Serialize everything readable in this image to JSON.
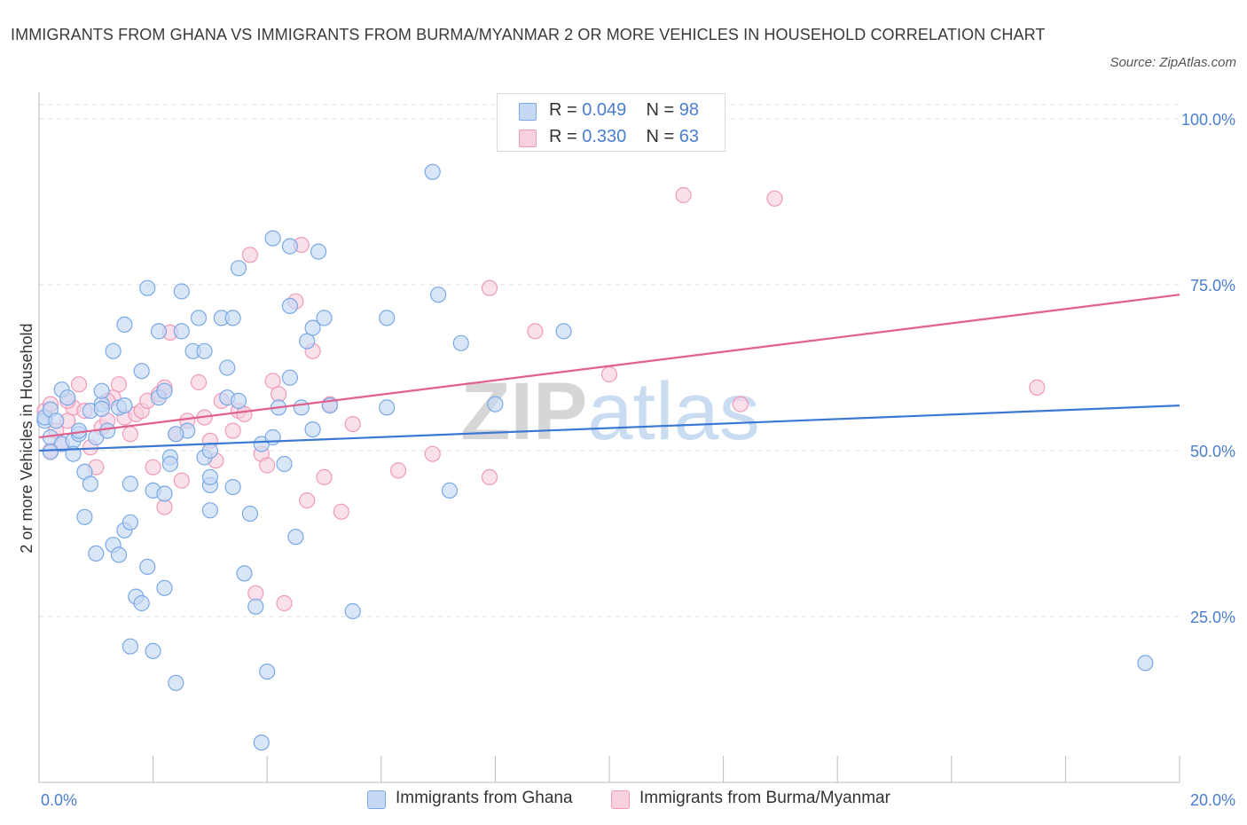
{
  "title": "IMMIGRANTS FROM GHANA VS IMMIGRANTS FROM BURMA/MYANMAR 2 OR MORE VEHICLES IN HOUSEHOLD CORRELATION CHART",
  "source": "Source: ZipAtlas.com",
  "legend": {
    "rows": [
      {
        "r_label": "R =",
        "r_value": "0.049",
        "n_label": "N =",
        "n_value": "98",
        "color": "#7aa9e6"
      },
      {
        "r_label": "R =",
        "r_value": "0.330",
        "n_label": "N =",
        "n_value": "63",
        "color": "#ef9ab8"
      }
    ]
  },
  "bottom_legend": [
    "Immigrants from Ghana",
    "Immigrants from Burma/Myanmar"
  ],
  "colors": {
    "blue_fill": "#c5d9f5",
    "blue_stroke": "#7aa9e6",
    "blue_line": "#3a78d4",
    "pink_fill": "#f8d0de",
    "pink_stroke": "#ef9ab8",
    "pink_line": "#e0608c",
    "axis_text": "#4a7ecf",
    "grid": "#dcdcdc"
  },
  "chart_data": {
    "type": "scatter",
    "xlabel": "",
    "ylabel": "2 or more Vehicles in Household",
    "xlim": [
      0,
      20
    ],
    "ylim": [
      0,
      100
    ],
    "x_tick_labels": [
      "0.0%",
      "20.0%"
    ],
    "y_tick_labels": [
      "25.0%",
      "50.0%",
      "75.0%",
      "100.0%"
    ],
    "y_ticks": [
      25,
      50,
      75,
      100
    ],
    "grid": true,
    "legend_position": "top-center",
    "watermark": "ZIPatlas",
    "series": [
      {
        "name": "Immigrants from Ghana",
        "trend": {
          "x": [
            0,
            20
          ],
          "y": [
            50.0,
            56.8
          ]
        },
        "points": [
          [
            0.1,
            54.5
          ],
          [
            0.1,
            55.0
          ],
          [
            0.2,
            52.0
          ],
          [
            0.2,
            56.2
          ],
          [
            0.3,
            54.5
          ],
          [
            0.4,
            59.2
          ],
          [
            0.4,
            51.0
          ],
          [
            0.5,
            58.0
          ],
          [
            0.6,
            51.5
          ],
          [
            0.7,
            52.5
          ],
          [
            0.7,
            53.0
          ],
          [
            0.8,
            46.8
          ],
          [
            0.8,
            40.0
          ],
          [
            0.9,
            56.0
          ],
          [
            0.9,
            45.0
          ],
          [
            1.0,
            34.5
          ],
          [
            1.0,
            52.0
          ],
          [
            1.1,
            57.0
          ],
          [
            1.1,
            56.3
          ],
          [
            1.2,
            53.0
          ],
          [
            1.3,
            65.0
          ],
          [
            1.3,
            35.8
          ],
          [
            1.4,
            56.5
          ],
          [
            1.4,
            34.3
          ],
          [
            1.5,
            56.8
          ],
          [
            1.5,
            38.0
          ],
          [
            1.6,
            20.5
          ],
          [
            1.6,
            39.2
          ],
          [
            1.6,
            45.0
          ],
          [
            1.7,
            28.0
          ],
          [
            1.8,
            27.0
          ],
          [
            1.8,
            62.0
          ],
          [
            1.9,
            74.5
          ],
          [
            1.9,
            32.5
          ],
          [
            2.0,
            44.0
          ],
          [
            2.0,
            19.8
          ],
          [
            2.1,
            68.0
          ],
          [
            2.1,
            58.0
          ],
          [
            2.2,
            59.0
          ],
          [
            2.2,
            29.3
          ],
          [
            2.2,
            43.5
          ],
          [
            2.3,
            49.0
          ],
          [
            2.3,
            48.0
          ],
          [
            2.4,
            15.0
          ],
          [
            2.5,
            74.0
          ],
          [
            2.5,
            68.0
          ],
          [
            2.6,
            53.0
          ],
          [
            2.7,
            65.0
          ],
          [
            2.8,
            70.0
          ],
          [
            2.9,
            65.0
          ],
          [
            2.9,
            49.0
          ],
          [
            3.0,
            50.0
          ],
          [
            3.0,
            44.8
          ],
          [
            3.0,
            41.0
          ],
          [
            3.2,
            70.0
          ],
          [
            3.3,
            62.5
          ],
          [
            3.3,
            58.0
          ],
          [
            3.4,
            70.0
          ],
          [
            3.4,
            44.5
          ],
          [
            3.5,
            77.5
          ],
          [
            3.5,
            57.5
          ],
          [
            3.6,
            31.5
          ],
          [
            3.7,
            40.5
          ],
          [
            3.8,
            26.5
          ],
          [
            3.9,
            51.0
          ],
          [
            3.9,
            6.0
          ],
          [
            4.0,
            16.7
          ],
          [
            4.1,
            82.0
          ],
          [
            4.1,
            52.0
          ],
          [
            4.2,
            56.5
          ],
          [
            4.4,
            71.8
          ],
          [
            4.4,
            61.0
          ],
          [
            4.4,
            80.8
          ],
          [
            4.5,
            37.0
          ],
          [
            4.6,
            56.5
          ],
          [
            4.7,
            66.5
          ],
          [
            4.8,
            68.5
          ],
          [
            4.8,
            53.2
          ],
          [
            4.9,
            80.0
          ],
          [
            5.0,
            70.0
          ],
          [
            5.1,
            56.8
          ],
          [
            5.5,
            25.8
          ],
          [
            6.1,
            70.0
          ],
          [
            6.1,
            56.5
          ],
          [
            6.9,
            92.0
          ],
          [
            7.0,
            73.5
          ],
          [
            7.2,
            44.0
          ],
          [
            7.4,
            66.2
          ],
          [
            8.0,
            57.0
          ],
          [
            9.2,
            68.0
          ],
          [
            19.4,
            18.0
          ],
          [
            1.5,
            69.0
          ],
          [
            0.6,
            49.5
          ],
          [
            1.1,
            59.0
          ],
          [
            3.0,
            46.0
          ],
          [
            2.4,
            52.5
          ],
          [
            4.3,
            48.0
          ],
          [
            0.2,
            49.8
          ]
        ]
      },
      {
        "name": "Immigrants from Burma/Myanmar",
        "trend": {
          "x": [
            0,
            20
          ],
          "y": [
            52.0,
            73.5
          ]
        },
        "points": [
          [
            0.1,
            56.0
          ],
          [
            0.2,
            57.0
          ],
          [
            0.3,
            53.0
          ],
          [
            0.4,
            51.0
          ],
          [
            0.5,
            54.5
          ],
          [
            0.6,
            56.5
          ],
          [
            0.7,
            60.0
          ],
          [
            0.8,
            56.0
          ],
          [
            0.9,
            50.5
          ],
          [
            1.0,
            47.5
          ],
          [
            1.1,
            53.5
          ],
          [
            1.2,
            54.5
          ],
          [
            1.3,
            58.0
          ],
          [
            1.4,
            60.0
          ],
          [
            1.5,
            55.0
          ],
          [
            1.6,
            52.5
          ],
          [
            1.7,
            55.5
          ],
          [
            1.8,
            56.0
          ],
          [
            1.9,
            57.5
          ],
          [
            2.0,
            47.5
          ],
          [
            2.1,
            58.5
          ],
          [
            2.2,
            59.5
          ],
          [
            2.2,
            41.5
          ],
          [
            2.3,
            67.8
          ],
          [
            2.4,
            52.5
          ],
          [
            2.5,
            45.5
          ],
          [
            2.6,
            54.5
          ],
          [
            2.8,
            60.3
          ],
          [
            2.9,
            55.0
          ],
          [
            3.0,
            51.5
          ],
          [
            3.1,
            48.5
          ],
          [
            3.2,
            57.5
          ],
          [
            3.4,
            53.0
          ],
          [
            3.5,
            56.0
          ],
          [
            3.6,
            55.5
          ],
          [
            3.7,
            79.5
          ],
          [
            3.8,
            28.5
          ],
          [
            3.9,
            49.5
          ],
          [
            4.0,
            47.8
          ],
          [
            4.1,
            60.5
          ],
          [
            4.2,
            58.5
          ],
          [
            4.3,
            27.0
          ],
          [
            4.5,
            72.5
          ],
          [
            4.6,
            81.0
          ],
          [
            4.7,
            42.5
          ],
          [
            4.8,
            65.0
          ],
          [
            5.0,
            46.0
          ],
          [
            5.1,
            57.0
          ],
          [
            5.3,
            40.8
          ],
          [
            5.5,
            54.0
          ],
          [
            6.3,
            47.0
          ],
          [
            6.9,
            49.5
          ],
          [
            7.9,
            74.5
          ],
          [
            7.9,
            46.0
          ],
          [
            8.7,
            68.0
          ],
          [
            10.0,
            61.5
          ],
          [
            11.3,
            88.5
          ],
          [
            12.3,
            57.0
          ],
          [
            12.9,
            88.0
          ],
          [
            17.5,
            59.5
          ],
          [
            0.2,
            50.0
          ],
          [
            1.2,
            57.5
          ],
          [
            0.5,
            57.5
          ]
        ]
      }
    ]
  }
}
